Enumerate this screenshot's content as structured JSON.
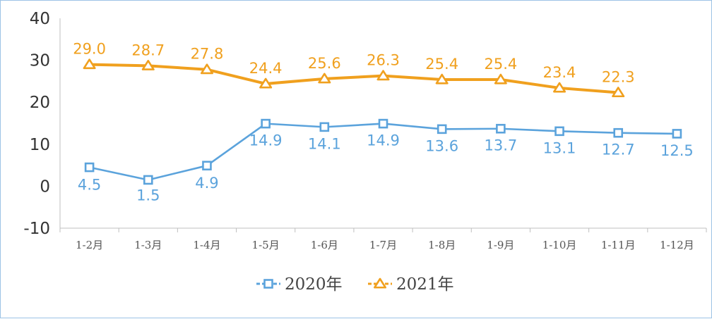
{
  "chart_data": {
    "type": "line",
    "categories": [
      "1-2月",
      "1-3月",
      "1-4月",
      "1-5月",
      "1-6月",
      "1-7月",
      "1-8月",
      "1-9月",
      "1-10月",
      "1-11月",
      "1-12月"
    ],
    "series": [
      {
        "name": "2020年",
        "values": [
          4.5,
          1.5,
          4.9,
          14.9,
          14.1,
          14.9,
          13.6,
          13.7,
          13.1,
          12.7,
          12.5
        ],
        "labels": [
          "4.5",
          "1.5",
          "4.9",
          "14.9",
          "14.1",
          "14.9",
          "13.6",
          "13.7",
          "13.1",
          "12.7",
          "12.5"
        ],
        "color": "#5ba3dc",
        "marker": "square"
      },
      {
        "name": "2021年",
        "values": [
          29.0,
          28.7,
          27.8,
          24.4,
          25.6,
          26.3,
          25.4,
          25.4,
          23.4,
          22.3,
          null
        ],
        "labels": [
          "29.0",
          "28.7",
          "27.8",
          "24.4",
          "25.6",
          "26.3",
          "25.4",
          "25.4",
          "23.4",
          "22.3",
          ""
        ],
        "color": "#f0a01e",
        "marker": "triangle"
      }
    ],
    "ylim": [
      -10,
      40
    ],
    "yticks": [
      -10,
      0,
      10,
      20,
      30,
      40
    ],
    "ytick_labels": [
      "-10",
      "0",
      "10",
      "20",
      "30",
      "40"
    ],
    "grid": false,
    "legend_position": "bottom"
  }
}
